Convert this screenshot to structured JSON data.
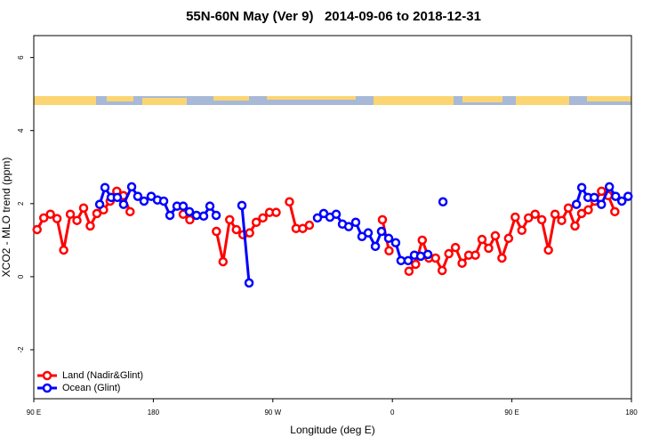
{
  "chart_data": {
    "type": "line",
    "title": "55N-60N May (Ver 9)   2014-09-06 to 2018-12-31",
    "x_label": "Longitude (deg E)",
    "y_label": "XCO2 - MLO trend (ppm)",
    "xlim": [
      90,
      540
    ],
    "xticks": [
      {
        "value": 90,
        "label": "90 E"
      },
      {
        "value": 180,
        "label": "180"
      },
      {
        "value": 270,
        "label": "90 W"
      },
      {
        "value": 360,
        "label": "0"
      },
      {
        "value": 450,
        "label": "90 E"
      },
      {
        "value": 540,
        "label": "180"
      }
    ],
    "ylim": [
      -3.34,
      6.6
    ],
    "yticks": [
      -2,
      0,
      2,
      4,
      6
    ],
    "legend": "bottom-left",
    "series": [
      {
        "name": "Land (Nadir&Glint)",
        "color": "#ff0000",
        "x": [
          92.5,
          97.5,
          102.5,
          107.5,
          112.5,
          117.5,
          122.5,
          127.5,
          132.5,
          137.5,
          142.5,
          147.5,
          152.5,
          157.5,
          162.5,
          182.5,
          202.5,
          207.5,
          217.5,
          227.5,
          232.5,
          237.5,
          242.5,
          247.5,
          252.5,
          257.5,
          262.5,
          267.5,
          272.5,
          277.5,
          282.5,
          287.5,
          292.5,
          297.5,
          322.5,
          352.5,
          357.5,
          365,
          372.5,
          377.5,
          382.5,
          387.5,
          392.5,
          397.5,
          402.5,
          407.5,
          412.5,
          417.5,
          422.5,
          427.5,
          432.5,
          437.5,
          442.5,
          447.5,
          452.5,
          457.5,
          462.5,
          467.5,
          472.5,
          477.5,
          482.5,
          487.5,
          492.5,
          497.5,
          502.5,
          507.5,
          512.5,
          517.5,
          522.5,
          527.5
        ],
        "values": [
          1.29,
          1.61,
          1.71,
          1.59,
          0.73,
          1.71,
          1.54,
          1.88,
          1.39,
          1.73,
          1.83,
          2.07,
          2.34,
          2.22,
          1.78,
          null,
          1.71,
          1.56,
          null,
          1.24,
          0.41,
          1.56,
          1.29,
          1.15,
          1.2,
          1.49,
          1.61,
          1.76,
          1.76,
          null,
          2.05,
          1.32,
          1.32,
          1.41,
          null,
          1.56,
          0.71,
          null,
          0.15,
          0.34,
          1.0,
          0.51,
          0.51,
          0.17,
          0.63,
          0.8,
          0.37,
          0.59,
          0.59,
          1.02,
          0.78,
          1.12,
          0.51,
          1.05,
          1.63,
          1.27,
          1.61,
          1.71,
          1.56,
          0.73,
          1.71,
          1.54,
          1.88,
          1.39,
          1.73,
          1.83,
          2.07,
          2.34,
          2.22,
          1.78
        ]
      },
      {
        "name": "Ocean (Glint)",
        "color": "#0000ff",
        "x": [
          139.6,
          143.6,
          148.3,
          152.9,
          157.6,
          163.7,
          168.3,
          173,
          178.4,
          183.1,
          187.8,
          192.5,
          197.8,
          202.5,
          207.2,
          212.5,
          217.9,
          222.6,
          227.3,
          237,
          246.7,
          252.1,
          278,
          303.6,
          308.3,
          313,
          317.7,
          322.4,
          327.1,
          332.4,
          337.1,
          341.8,
          347.2,
          351.8,
          357.2,
          362.5,
          366.5,
          371.9,
          376.6,
          381.3,
          386.7,
          392,
          398.1,
          450,
          498.6,
          502.6,
          507.3,
          512,
          517.4,
          523.4,
          528.1,
          532.8,
          537.5
        ],
        "values": [
          1.98,
          2.44,
          2.17,
          2.17,
          1.98,
          2.46,
          2.2,
          2.07,
          2.2,
          2.1,
          2.07,
          1.68,
          1.93,
          1.93,
          1.78,
          1.68,
          1.66,
          1.93,
          1.68,
          null,
          1.95,
          -0.17,
          null,
          1.61,
          1.73,
          1.63,
          1.71,
          1.44,
          1.37,
          1.49,
          1.1,
          1.2,
          0.83,
          1.24,
          1.05,
          0.93,
          0.44,
          0.44,
          0.59,
          0.56,
          0.61,
          null,
          2.05,
          null,
          1.98,
          2.44,
          2.17,
          2.17,
          1.98,
          2.46,
          2.2,
          2.07,
          2.2
        ]
      }
    ]
  }
}
